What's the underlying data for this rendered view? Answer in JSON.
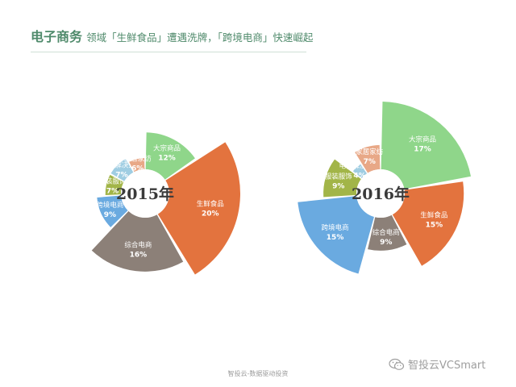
{
  "title": {
    "main": "电子商务",
    "rest": "领域「生鲜食品」遭遇洗牌，「跨境电商」快速崛起"
  },
  "footer": "智投云-数据驱动投资",
  "watermark": {
    "icon": "wechat-icon",
    "text": "智投云VCSmart"
  },
  "chart_data": [
    {
      "type": "pie",
      "subtype": "exploded-donut",
      "center_label": "2015年",
      "categories": [
        "大宗商品",
        "生鲜食品",
        "综合电商",
        "跨境电商",
        "服装服饰",
        "电商解决方案",
        "家居家纺"
      ],
      "values": [
        12,
        20,
        16,
        9,
        7,
        7,
        6
      ],
      "labels": [
        "12%",
        "20%",
        "16%",
        "9%",
        "7%",
        "7%",
        "6%"
      ],
      "colors": [
        "#8fd68a",
        "#e3733e",
        "#8c8078",
        "#6aaae0",
        "#a2b548",
        "#9fcde2",
        "#e8a887"
      ]
    },
    {
      "type": "pie",
      "subtype": "exploded-donut",
      "center_label": "2016年",
      "categories": [
        "大宗商品",
        "生鲜食品",
        "综合电商",
        "跨境电商",
        "服装服饰",
        "电商解决方案",
        "家居家纺"
      ],
      "values": [
        17,
        15,
        9,
        15,
        9,
        4,
        7
      ],
      "labels": [
        "17%",
        "15%",
        "9%",
        "15%",
        "9%",
        "4%",
        "7%"
      ],
      "colors": [
        "#8fd68a",
        "#e3733e",
        "#8c8078",
        "#6aaae0",
        "#a2b548",
        "#9fcde2",
        "#e8a887"
      ]
    }
  ]
}
